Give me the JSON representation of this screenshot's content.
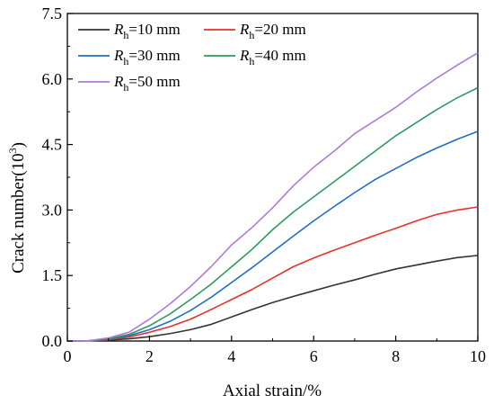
{
  "chart_data": {
    "type": "line",
    "xlabel": "Axial strain/%",
    "ylabel_prefix": "Crack number(10",
    "ylabel_exponent": "3",
    "ylabel_suffix": ")",
    "xlim": [
      0,
      10
    ],
    "ylim": [
      0,
      7.5
    ],
    "x_ticks": [
      0,
      2,
      4,
      6,
      8,
      10
    ],
    "y_ticks": [
      0.0,
      1.5,
      3.0,
      4.5,
      6.0,
      7.5
    ],
    "x_tick_labels": [
      "0",
      "2",
      "4",
      "6",
      "8",
      "10"
    ],
    "y_tick_labels": [
      "0.0",
      "1.5",
      "3.0",
      "4.5",
      "6.0",
      "7.5"
    ],
    "grid": false,
    "legend_position": "top-left",
    "series": [
      {
        "legend_var": "R",
        "legend_sub": "h",
        "legend_value": "=10 mm",
        "color": "#333333",
        "x": [
          0,
          0.5,
          1,
          1.5,
          2,
          2.5,
          3,
          3.5,
          4,
          4.5,
          5,
          5.5,
          6,
          6.5,
          7,
          7.5,
          8,
          8.5,
          9,
          9.5,
          10
        ],
        "y": [
          0,
          0.005,
          0.02,
          0.05,
          0.1,
          0.17,
          0.26,
          0.38,
          0.55,
          0.72,
          0.88,
          1.02,
          1.15,
          1.28,
          1.4,
          1.53,
          1.65,
          1.74,
          1.83,
          1.91,
          1.96
        ]
      },
      {
        "legend_var": "R",
        "legend_sub": "h",
        "legend_value": "=20 mm",
        "color": "#e8312a",
        "x": [
          0,
          0.5,
          1,
          1.5,
          2,
          2.5,
          3,
          3.5,
          4,
          4.5,
          5,
          5.5,
          6,
          6.5,
          7,
          7.5,
          8,
          8.5,
          9,
          9.5,
          10
        ],
        "y": [
          0,
          0.005,
          0.03,
          0.09,
          0.2,
          0.33,
          0.5,
          0.72,
          0.95,
          1.18,
          1.44,
          1.7,
          1.9,
          2.08,
          2.25,
          2.42,
          2.58,
          2.75,
          2.9,
          3.0,
          3.07
        ]
      },
      {
        "legend_var": "R",
        "legend_sub": "h",
        "legend_value": "=30 mm",
        "color": "#1f6fc6",
        "x": [
          0,
          0.5,
          1,
          1.5,
          2,
          2.5,
          3,
          3.5,
          4,
          4.5,
          5,
          5.5,
          6,
          6.5,
          7,
          7.5,
          8,
          8.5,
          9,
          9.5,
          10
        ],
        "y": [
          0,
          0.005,
          0.04,
          0.12,
          0.26,
          0.45,
          0.7,
          1.0,
          1.34,
          1.68,
          2.04,
          2.4,
          2.75,
          3.08,
          3.4,
          3.7,
          3.95,
          4.2,
          4.42,
          4.62,
          4.8
        ]
      },
      {
        "legend_var": "R",
        "legend_sub": "h",
        "legend_value": "=40 mm",
        "color": "#2e9a5e",
        "x": [
          0,
          0.5,
          1,
          1.5,
          2,
          2.5,
          3,
          3.5,
          4,
          4.5,
          5,
          5.5,
          6,
          6.5,
          7,
          7.5,
          8,
          8.5,
          9,
          9.5,
          10
        ],
        "y": [
          0,
          0.005,
          0.05,
          0.15,
          0.35,
          0.62,
          0.95,
          1.3,
          1.7,
          2.1,
          2.55,
          2.95,
          3.3,
          3.65,
          4.0,
          4.35,
          4.7,
          5.0,
          5.3,
          5.57,
          5.8
        ]
      },
      {
        "legend_var": "R",
        "legend_sub": "h",
        "legend_value": "=50 mm",
        "color": "#b07ad6",
        "x": [
          0,
          0.5,
          1,
          1.5,
          2,
          2.5,
          3,
          3.5,
          4,
          4.5,
          5,
          5.5,
          6,
          6.5,
          7,
          7.5,
          8,
          8.5,
          9,
          9.5,
          10
        ],
        "y": [
          0,
          0.005,
          0.07,
          0.2,
          0.5,
          0.85,
          1.25,
          1.7,
          2.2,
          2.6,
          3.05,
          3.55,
          3.98,
          4.35,
          4.75,
          5.05,
          5.35,
          5.7,
          6.02,
          6.32,
          6.6
        ]
      }
    ]
  }
}
